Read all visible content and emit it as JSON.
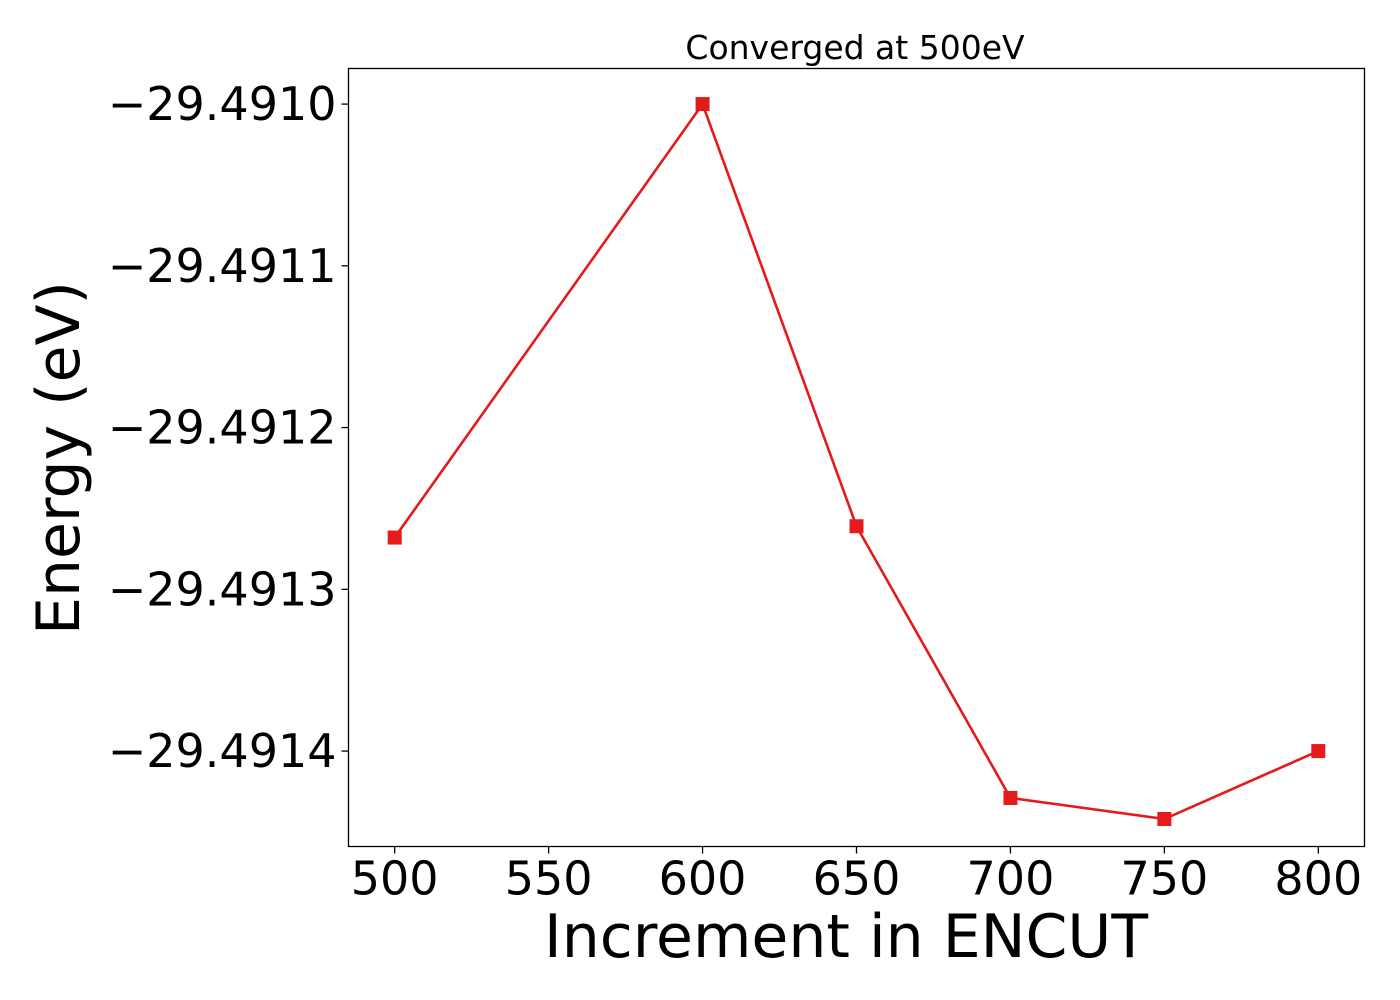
{
  "chart_data": {
    "type": "line",
    "title": "Converged at 500eV",
    "xlabel": "Increment in ENCUT",
    "ylabel": "Energy (eV)",
    "xlim": [
      485,
      815
    ],
    "ylim": [
      -29.491459,
      -29.490978
    ],
    "x_ticks": [
      500,
      550,
      600,
      650,
      700,
      750,
      800
    ],
    "x_tick_labels": [
      "500",
      "550",
      "600",
      "650",
      "700",
      "750",
      "800"
    ],
    "y_ticks": [
      -29.491,
      -29.4911,
      -29.4912,
      -29.4913,
      -29.4914
    ],
    "y_tick_labels": [
      "−29.4910",
      "−29.4911",
      "−29.4912",
      "−29.4913",
      "−29.4914"
    ],
    "grid": false,
    "marker": "square",
    "color": "#e41a1c",
    "series": [
      {
        "x": [
          500,
          600,
          650,
          700,
          750,
          800
        ],
        "y": [
          -29.491268,
          -29.491,
          -29.491261,
          -29.491429,
          -29.491442,
          -29.4914
        ]
      }
    ]
  }
}
